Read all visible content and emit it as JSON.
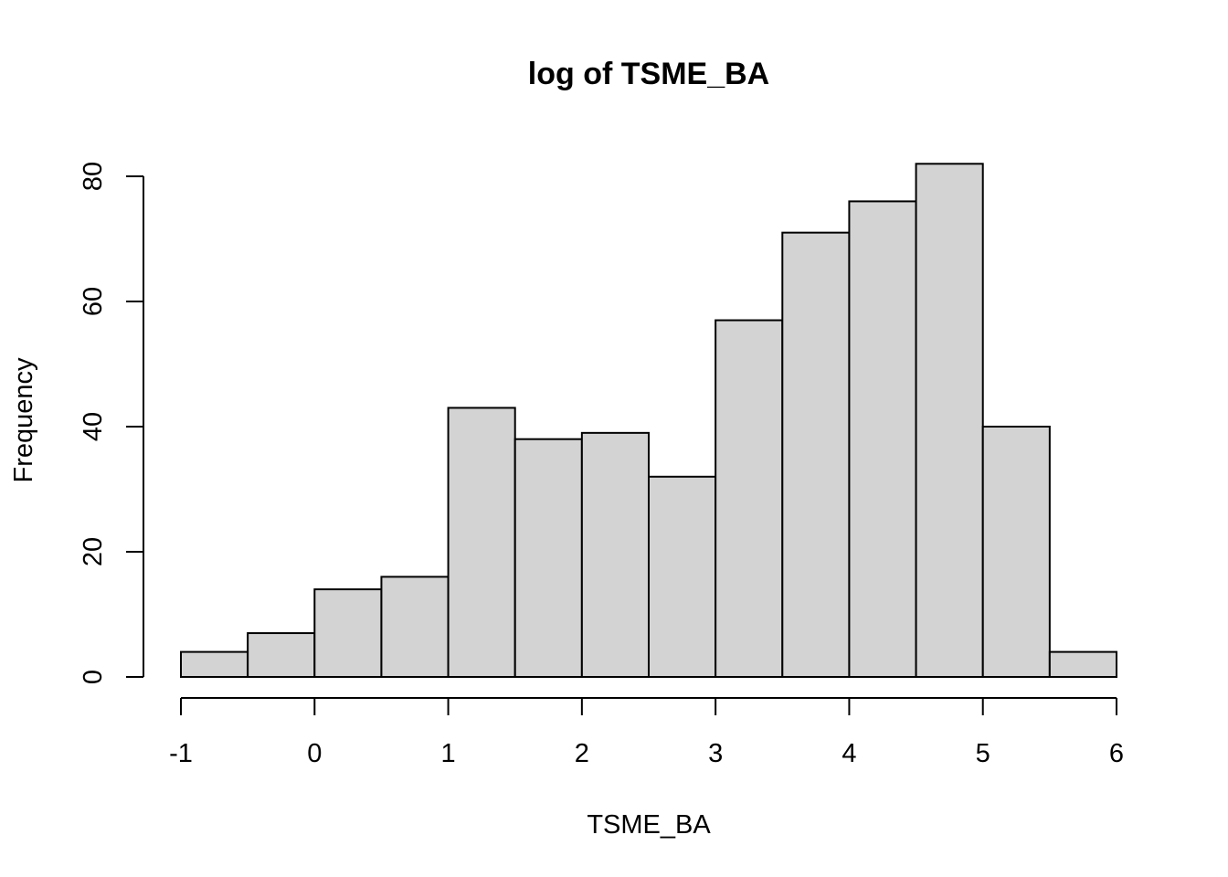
{
  "chart_data": {
    "type": "bar",
    "title": "log of TSME_BA",
    "xlabel": "TSME_BA",
    "ylabel": "Frequency",
    "bin_edges": [
      -1,
      -0.5,
      0,
      0.5,
      1,
      1.5,
      2,
      2.5,
      3,
      3.5,
      4,
      4.5,
      5,
      5.5,
      6
    ],
    "values": [
      4,
      7,
      14,
      16,
      43,
      38,
      39,
      32,
      57,
      71,
      76,
      82,
      40,
      4
    ],
    "xlim": [
      -1,
      6
    ],
    "ylim": [
      0,
      80
    ],
    "x_ticks": [
      "-1",
      "0",
      "1",
      "2",
      "3",
      "4",
      "5",
      "6"
    ],
    "y_ticks": [
      "0",
      "20",
      "40",
      "60",
      "80"
    ],
    "grid": false,
    "bar_color": "#d3d3d3",
    "edge_color": "#000000"
  }
}
